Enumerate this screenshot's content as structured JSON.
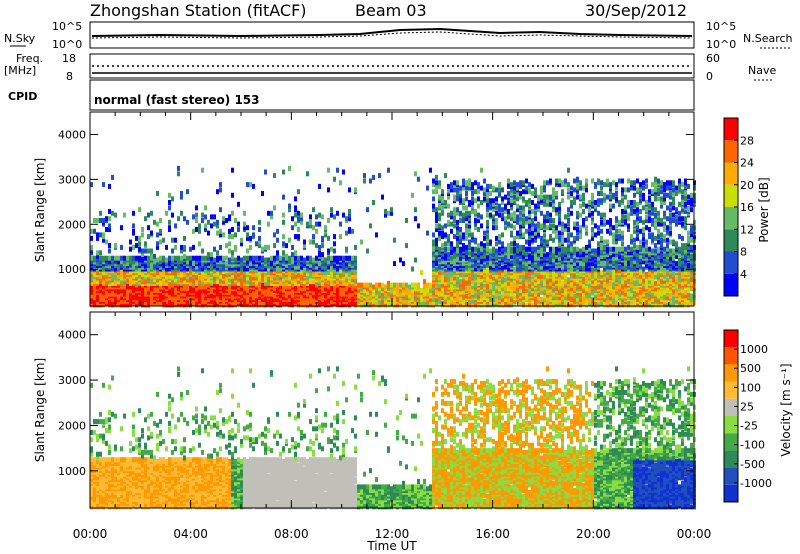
{
  "header": {
    "station": "Zhongshan Station (fitACF)",
    "beam": "Beam 03",
    "date": "30/Sep/2012"
  },
  "top_panels": {
    "nsky_label": "N.Sky",
    "nsearch_label": "N.Search",
    "noise_left_ticks": [
      "10^5",
      "10^0"
    ],
    "noise_right_ticks": [
      "10^5",
      "10^0"
    ],
    "freq_label_1": "Freq.",
    "freq_label_2": "[MHz]",
    "freq_ticks": [
      "18",
      "8"
    ],
    "nave_label": "Nave",
    "nave_ticks": [
      "60",
      "0"
    ],
    "cpid_label": "CPID",
    "cpid_text": "normal (fast stereo) 153"
  },
  "colors": {
    "power": [
      "#0000ff",
      "#1f4fd0",
      "#2e8b57",
      "#66bb66",
      "#ccdd00",
      "#ffaa00",
      "#ff6600",
      "#ff0000"
    ],
    "velocity": [
      "#ff0000",
      "#ff5500",
      "#ff9900",
      "#ffbb33",
      "#c0c0b8",
      "#88dd44",
      "#44aa44",
      "#2e8b57",
      "#2050c0",
      "#1030d0"
    ]
  },
  "chart_data": [
    {
      "type": "heatmap",
      "panel": "power",
      "ylabel": "Slant Range [km]",
      "xlabel": "Time UT",
      "x_ticks": [
        "00:00",
        "04:00",
        "08:00",
        "12:00",
        "16:00",
        "20:00",
        "00:00"
      ],
      "y_ticks": [
        "1000",
        "2000",
        "3000",
        "4000"
      ],
      "colorbar_label": "Power [dB]",
      "colorbar_ticks": [
        "4",
        "8",
        "12",
        "16",
        "20",
        "24",
        "28"
      ],
      "xlim_hours": [
        0,
        24
      ],
      "ylim_km": [
        180,
        4500
      ]
    },
    {
      "type": "heatmap",
      "panel": "velocity",
      "ylabel": "Slant Range [km]",
      "xlabel": "Time UT",
      "x_ticks": [
        "00:00",
        "04:00",
        "08:00",
        "12:00",
        "16:00",
        "20:00",
        "00:00"
      ],
      "y_ticks": [
        "1000",
        "2000",
        "3000",
        "4000"
      ],
      "colorbar_label": "Velocity [m s⁻¹]",
      "colorbar_ticks": [
        "1000",
        "500",
        "100",
        "25",
        "-25",
        "-100",
        "-500",
        "-1000"
      ],
      "xlim_hours": [
        0,
        24
      ],
      "ylim_km": [
        180,
        4500
      ]
    }
  ]
}
